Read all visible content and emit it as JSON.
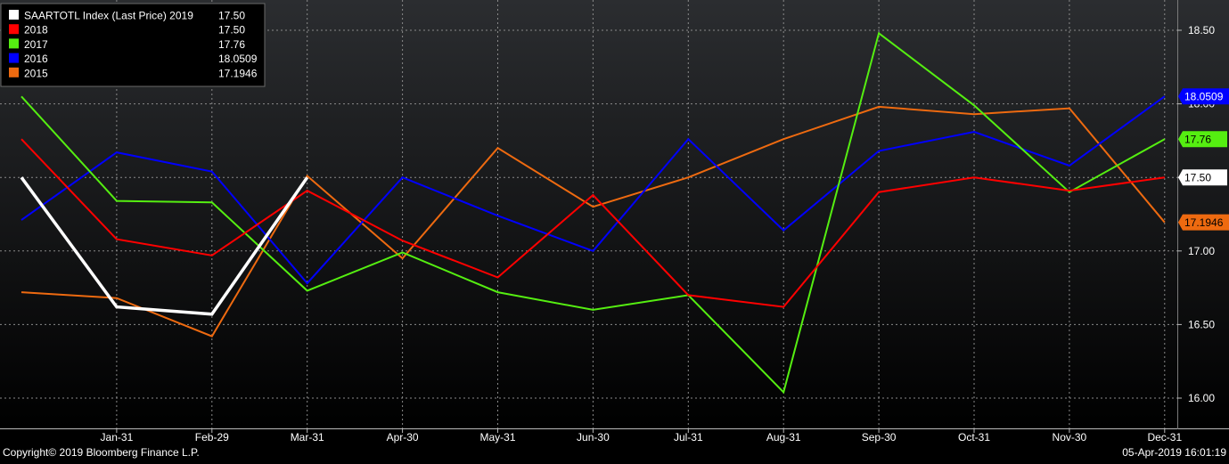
{
  "colors": {
    "background_top": "#2b2d30",
    "background_bottom": "#000000",
    "grid": "#8a8a8a",
    "axis_text": "#ffffff",
    "legend_bg": "#000000"
  },
  "footer": {
    "copyright": "Copyright© 2019 Bloomberg Finance L.P.",
    "timestamp": "05-Apr-2019 16:01:19"
  },
  "chart_data": {
    "type": "line",
    "categories": [
      "",
      "Jan-31",
      "Feb-29",
      "Mar-31",
      "Apr-30",
      "May-31",
      "Jun-30",
      "Jul-31",
      "Aug-31",
      "Sep-30",
      "Oct-31",
      "Nov-30",
      "Dec-31"
    ],
    "ylim": [
      15.85,
      18.75
    ],
    "yticks": [
      "16.00",
      "16.50",
      "17.00",
      "17.50",
      "18.00",
      "18.50"
    ],
    "grid": true,
    "legend_position": "top-left",
    "series": [
      {
        "name": "SAARTOTL Index (Last Price) 2019",
        "last": "17.50",
        "color": "#ffffff",
        "stroke_width": 3.5,
        "tag": false,
        "values": [
          17.5,
          16.62,
          16.57,
          17.5,
          null,
          null,
          null,
          null,
          null,
          null,
          null,
          null,
          null
        ]
      },
      {
        "name": "2018",
        "last": "17.50",
        "color": "#ff0000",
        "stroke_width": 2,
        "tag": false,
        "values": [
          17.76,
          17.08,
          16.97,
          17.41,
          17.07,
          16.82,
          17.38,
          16.7,
          16.62,
          17.4,
          17.5,
          17.41,
          17.5
        ]
      },
      {
        "name": "2017",
        "last": "17.76",
        "color": "#55ee11",
        "stroke_width": 2,
        "tag": true,
        "values": [
          18.05,
          17.34,
          17.33,
          16.73,
          16.99,
          16.72,
          16.6,
          16.7,
          16.04,
          18.48,
          17.99,
          17.4,
          17.76
        ]
      },
      {
        "name": "2016",
        "last": "18.0509",
        "color": "#0000ff",
        "stroke_width": 2,
        "tag": true,
        "values": [
          17.21,
          17.67,
          17.54,
          16.78,
          17.5,
          17.24,
          17.0,
          17.76,
          17.14,
          17.68,
          17.81,
          17.58,
          18.0509
        ]
      },
      {
        "name": "2015",
        "last": "17.1946",
        "color": "#ee6a10",
        "stroke_width": 2,
        "tag": true,
        "values": [
          16.72,
          16.68,
          16.42,
          17.51,
          16.95,
          17.7,
          17.3,
          17.5,
          17.76,
          17.98,
          17.93,
          17.97,
          17.1946
        ]
      }
    ],
    "value_tags": [
      {
        "text": "18.0509",
        "value": 18.0509,
        "bg": "#0000ff",
        "fg": "#ffffff"
      },
      {
        "text": "17.76",
        "value": 17.76,
        "bg": "#55ee11",
        "fg": "#000000"
      },
      {
        "text": "17.50",
        "value": 17.5,
        "bg": "#ffffff",
        "fg": "#000000"
      },
      {
        "text": "17.1946",
        "value": 17.1946,
        "bg": "#ee6a10",
        "fg": "#000000"
      }
    ]
  }
}
